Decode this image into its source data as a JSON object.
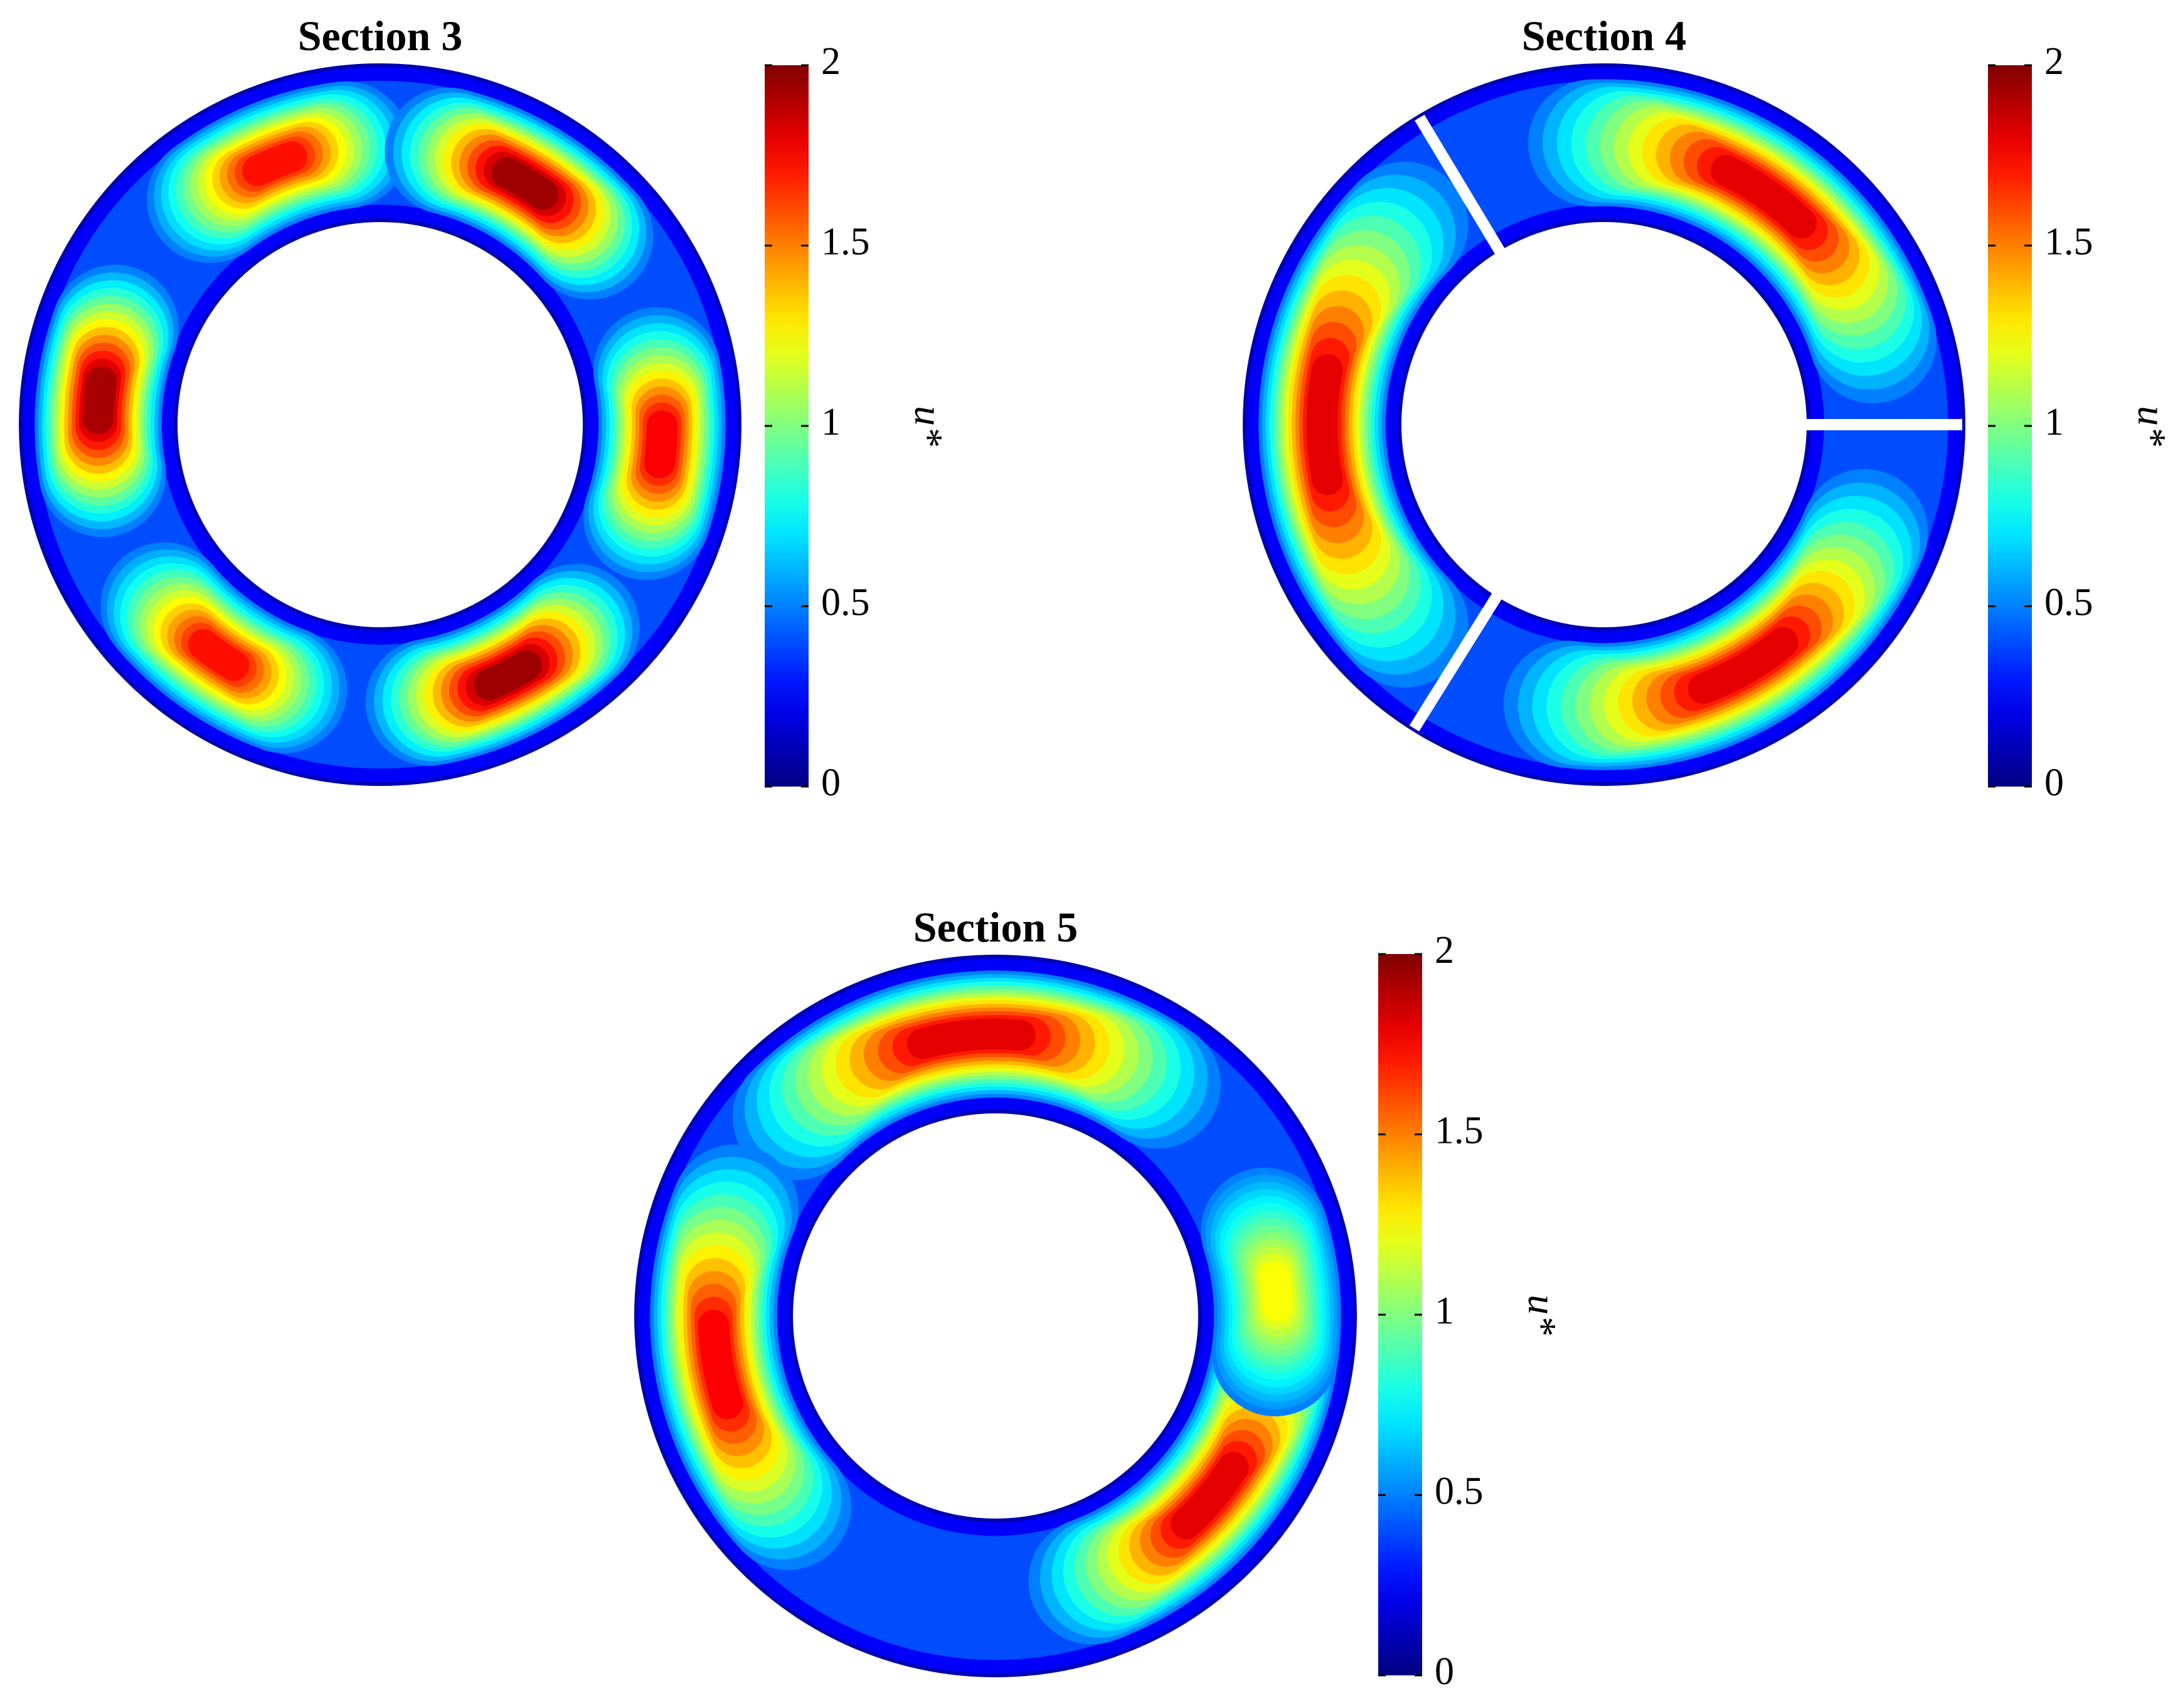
{
  "chart_data": [
    {
      "type": "contour",
      "title": "Section 3",
      "colormap": "jet",
      "colorbar": {
        "label": "u*",
        "lim": [
          0,
          2
        ],
        "ticks": [
          0,
          0.5,
          1,
          1.5,
          2
        ]
      }
    },
    {
      "type": "contour",
      "title": "Section 4",
      "colormap": "jet",
      "colorbar": {
        "label": "u*",
        "lim": [
          0,
          2
        ],
        "ticks": [
          0,
          0.5,
          1,
          1.5,
          2
        ]
      }
    },
    {
      "type": "contour",
      "title": "Section 5",
      "colormap": "jet",
      "colorbar": {
        "label": "u*",
        "lim": [
          0,
          2
        ],
        "ticks": [
          0,
          0.5,
          1,
          1.5,
          2
        ]
      }
    }
  ]
}
